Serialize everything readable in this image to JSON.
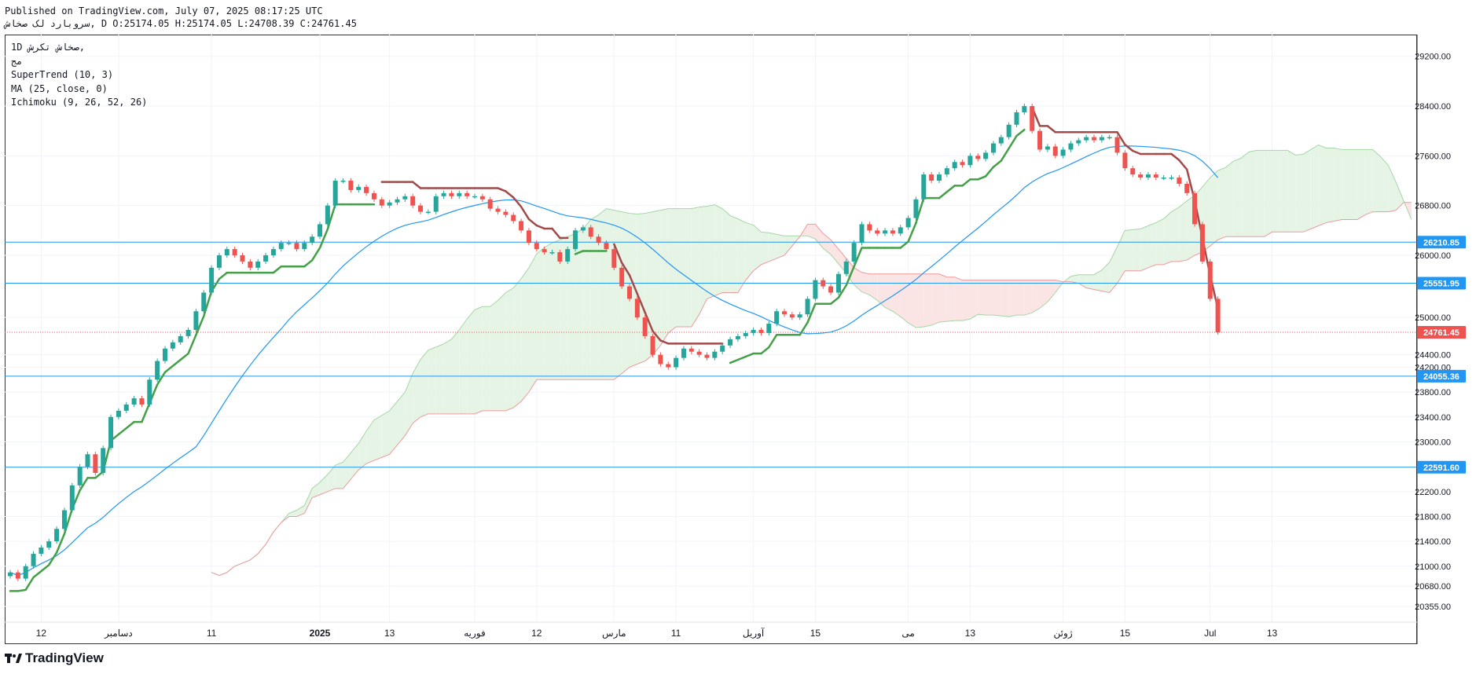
{
  "header": {
    "published": "Published on TradingView.com, July 07, 2025 08:17:25 UTC",
    "ohlc": "سروبارد لک صخاش, D O:25174.05 H:25174.05 L:24708.39 C:24761.45"
  },
  "legend": {
    "line1": "1D  صخاش تکرش,",
    "line2": "مج",
    "supertrend": "SuperTrend (10, 3)",
    "ma": "MA (25, close, 0)",
    "ichimoku": "Ichimoku (9, 26, 52, 26)"
  },
  "brand": {
    "name": "TradingView"
  },
  "colors": {
    "up": "#26a69a",
    "down": "#ef5350",
    "st_up": "#43a047",
    "st_down": "#a14a4a",
    "ma": "#2196f3",
    "hline": "#2196f3",
    "cloud_green": "#e6f4e6",
    "cloud_red": "#fbe4e4"
  },
  "chart_data": {
    "type": "candlestick",
    "ylim": [
      20100,
      29550
    ],
    "y_ticks": [
      29200,
      28400,
      27600,
      26800,
      26000,
      25000,
      24400,
      24200,
      23800,
      23400,
      23000,
      22200,
      21800,
      21400,
      21000,
      20680,
      20355
    ],
    "y_tick_labels": [
      "29200.00",
      "28400.00",
      "27600.00",
      "26800.00",
      "26000.00",
      "25000.00",
      "24400.00",
      "24200.00",
      "23800.00",
      "23400.00",
      "23000.00",
      "22200.00",
      "21800.00",
      "21400.00",
      "21000.00",
      "20680.00",
      "20355.00"
    ],
    "x_ticks": [
      {
        "label": "12",
        "i": 4
      },
      {
        "label": "دسامبر",
        "i": 14
      },
      {
        "label": "11",
        "i": 26
      },
      {
        "label": "2025",
        "i": 40
      },
      {
        "label": "13",
        "i": 49
      },
      {
        "label": "فوریه",
        "i": 60
      },
      {
        "label": "12",
        "i": 68
      },
      {
        "label": "مارس",
        "i": 78
      },
      {
        "label": "11",
        "i": 86
      },
      {
        "label": "آوریل",
        "i": 96
      },
      {
        "label": "15",
        "i": 104
      },
      {
        "label": "می",
        "i": 116
      },
      {
        "label": "13",
        "i": 124
      },
      {
        "label": "ژوئن",
        "i": 136
      },
      {
        "label": "15",
        "i": 144
      },
      {
        "label": "Jul",
        "i": 155
      },
      {
        "label": "13",
        "i": 163
      }
    ],
    "horizontal_lines": [
      {
        "value": 26210.85,
        "label": "26210.85"
      },
      {
        "value": 25551.95,
        "label": "25551.95"
      },
      {
        "value": 24055.36,
        "label": "24055.36"
      },
      {
        "value": 22591.6,
        "label": "22591.60"
      }
    ],
    "last_price": {
      "value": 24761.45,
      "label": "24761.45"
    },
    "close": [
      20900,
      20800,
      21000,
      21200,
      21300,
      21400,
      21600,
      21900,
      22300,
      22600,
      22800,
      22500,
      22900,
      23400,
      23500,
      23600,
      23700,
      23600,
      24000,
      24300,
      24500,
      24600,
      24700,
      24800,
      25100,
      25400,
      25800,
      26000,
      26100,
      26000,
      25900,
      25800,
      25900,
      26000,
      26100,
      26200,
      26200,
      26100,
      26200,
      26300,
      26500,
      26800,
      27200,
      27200,
      27050,
      27100,
      27000,
      26900,
      26800,
      26850,
      26900,
      26950,
      26800,
      26700,
      26700,
      26950,
      27000,
      26950,
      27000,
      26950,
      26950,
      26900,
      26750,
      26700,
      26650,
      26550,
      26400,
      26200,
      26100,
      26050,
      26050,
      25900,
      26100,
      26400,
      26450,
      26300,
      26200,
      26100,
      25800,
      25500,
      25300,
      25000,
      24700,
      24400,
      24250,
      24200,
      24350,
      24500,
      24450,
      24400,
      24350,
      24450,
      24550,
      24650,
      24700,
      24750,
      24800,
      24750,
      24900,
      25100,
      25050,
      25000,
      25050,
      25300,
      25600,
      25500,
      25400,
      25700,
      25900,
      26200,
      26500,
      26400,
      26350,
      26400,
      26350,
      26450,
      26600,
      26900,
      27300,
      27200,
      27300,
      27400,
      27500,
      27450,
      27600,
      27550,
      27650,
      27800,
      27900,
      28100,
      28300,
      28400,
      28000,
      27700,
      27750,
      27600,
      27700,
      27800,
      27850,
      27900,
      27850,
      27900,
      27900,
      27650,
      27400,
      27300,
      27250,
      27300,
      27250,
      27250,
      27250,
      27150,
      27000,
      26500,
      25900,
      25300,
      24761.45
    ],
    "series": [
      {
        "name": "SuperTrend (10, 3)"
      },
      {
        "name": "MA (25, close, 0)"
      },
      {
        "name": "Ichimoku (9, 26, 52, 26)"
      }
    ]
  }
}
